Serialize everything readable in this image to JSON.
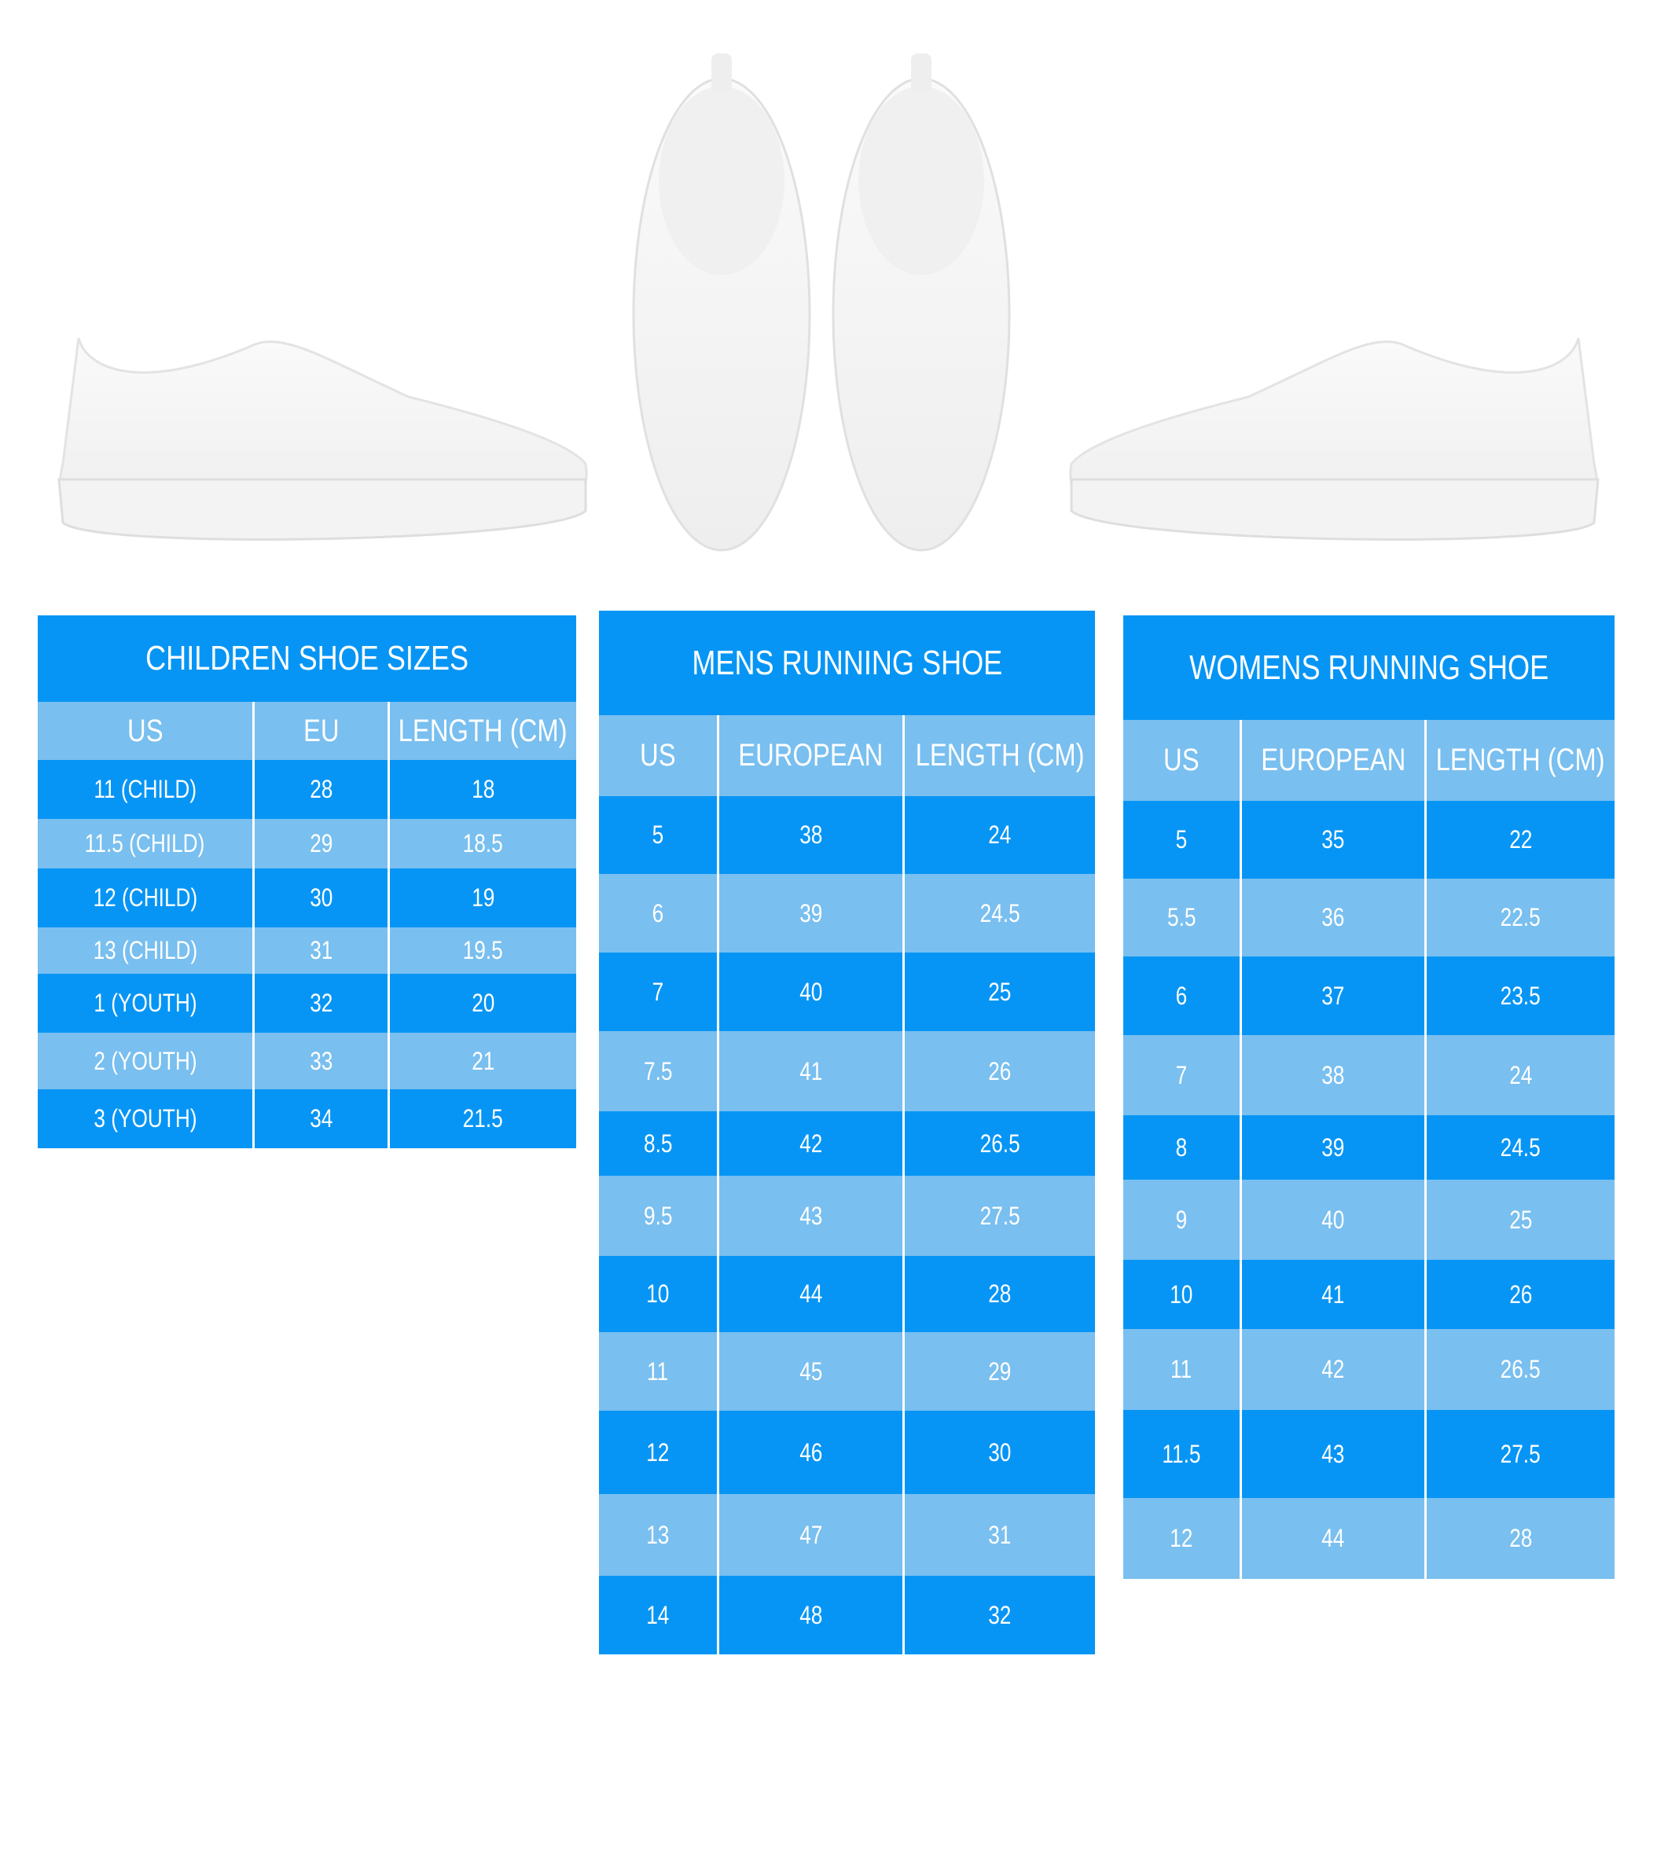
{
  "colors": {
    "dark_row": "#0795f5",
    "light_row": "#79bfef",
    "text": "#ffffff"
  },
  "images": [
    "white-sneaker-side-left",
    "white-sneakers-top-pair",
    "white-sneaker-side-right"
  ],
  "tables": [
    {
      "title": "CHILDREN SHOE SIZES",
      "headers": [
        "US",
        "EU",
        "LENGTH (CM)"
      ],
      "rows": [
        [
          "11 (CHILD)",
          "28",
          "18"
        ],
        [
          "11.5 (CHILD)",
          "29",
          "18.5"
        ],
        [
          "12 (CHILD)",
          "30",
          "19"
        ],
        [
          "13 (CHILD)",
          "31",
          "19.5"
        ],
        [
          "1 (YOUTH)",
          "32",
          "20"
        ],
        [
          "2 (YOUTH)",
          "33",
          "21"
        ],
        [
          "3 (YOUTH)",
          "34",
          "21.5"
        ]
      ]
    },
    {
      "title": "MENS RUNNING SHOE",
      "headers": [
        "US",
        "EUROPEAN",
        "LENGTH (CM)"
      ],
      "rows": [
        [
          "5",
          "38",
          "24"
        ],
        [
          "6",
          "39",
          "24.5"
        ],
        [
          "7",
          "40",
          "25"
        ],
        [
          "7.5",
          "41",
          "26"
        ],
        [
          "8.5",
          "42",
          "26.5"
        ],
        [
          "9.5",
          "43",
          "27.5"
        ],
        [
          "10",
          "44",
          "28"
        ],
        [
          "11",
          "45",
          "29"
        ],
        [
          "12",
          "46",
          "30"
        ],
        [
          "13",
          "47",
          "31"
        ],
        [
          "14",
          "48",
          "32"
        ]
      ]
    },
    {
      "title": "WOMENS RUNNING SHOE",
      "headers": [
        "US",
        "EUROPEAN",
        "LENGTH (CM)"
      ],
      "rows": [
        [
          "5",
          "35",
          "22"
        ],
        [
          "5.5",
          "36",
          "22.5"
        ],
        [
          "6",
          "37",
          "23.5"
        ],
        [
          "7",
          "38",
          "24"
        ],
        [
          "8",
          "39",
          "24.5"
        ],
        [
          "9",
          "40",
          "25"
        ],
        [
          "10",
          "41",
          "26"
        ],
        [
          "11",
          "42",
          "26.5"
        ],
        [
          "11.5",
          "43",
          "27.5"
        ],
        [
          "12",
          "44",
          "28"
        ]
      ]
    }
  ]
}
